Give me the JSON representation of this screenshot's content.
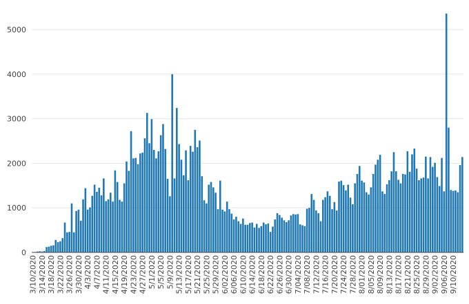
{
  "chart_data": {
    "type": "bar",
    "title": "",
    "xlabel": "",
    "ylabel": "",
    "ylim": [
      0,
      5500
    ],
    "yticks": [
      0,
      1000,
      2000,
      3000,
      4000,
      5000
    ],
    "ytick_labels": [
      "0",
      "1000",
      "2000",
      "3000",
      "4000",
      "5000"
    ],
    "grid": "horizontal",
    "bar_color": "#1f77b4",
    "start_date": "3/10/2020",
    "xtick_labels": [
      "3/10/2020",
      "3/14/2020",
      "3/18/2020",
      "3/22/2020",
      "3/26/2020",
      "3/30/2020",
      "4/3/2020",
      "4/7/2020",
      "4/11/2020",
      "4/15/2020",
      "4/19/2020",
      "4/23/2020",
      "4/27/2020",
      "5/1/2020",
      "5/5/2020",
      "5/9/2020",
      "5/13/2020",
      "5/17/2020",
      "5/21/2020",
      "5/25/2020",
      "5/29/2020",
      "6/02/2020",
      "6/06/2020",
      "6/10/2020",
      "6/14/2020",
      "6/18/2020",
      "6/22/2020",
      "6/26/2020",
      "6/30/2020",
      "7/04/2020",
      "7/08/2020",
      "7/12/2020",
      "7/16/2020",
      "7/20/2020",
      "7/24/2020",
      "7/28/2020",
      "8/01/2020",
      "8/05/2020",
      "8/09/2020",
      "8/13/2020",
      "8/17/2020",
      "8/21/2020",
      "8/25/2020",
      "8/29/2020",
      "9/02/2020",
      "9/06/2020",
      "9/10/2020"
    ],
    "values": [
      5,
      10,
      20,
      25,
      20,
      30,
      120,
      130,
      150,
      160,
      280,
      230,
      250,
      320,
      670,
      450,
      460,
      1100,
      450,
      930,
      960,
      710,
      1190,
      1440,
      960,
      1010,
      1270,
      1520,
      1360,
      1450,
      1280,
      1660,
      1150,
      1190,
      1340,
      1140,
      1840,
      1580,
      1180,
      1140,
      1550,
      2040,
      1830,
      2720,
      2110,
      2120,
      1980,
      2220,
      2240,
      2560,
      3130,
      2450,
      2990,
      2300,
      2110,
      2270,
      2630,
      2880,
      2320,
      1650,
      1260,
      4000,
      1660,
      3240,
      2430,
      2080,
      1730,
      2290,
      1620,
      2390,
      2260,
      2750,
      2360,
      2510,
      1710,
      1170,
      1100,
      1520,
      1580,
      1460,
      1340,
      970,
      1610,
      960,
      920,
      1140,
      970,
      870,
      740,
      800,
      700,
      640,
      760,
      620,
      620,
      660,
      670,
      560,
      640,
      550,
      590,
      670,
      630,
      650,
      460,
      580,
      740,
      880,
      840,
      780,
      720,
      680,
      720,
      830,
      860,
      850,
      860,
      630,
      610,
      590,
      980,
      1000,
      1310,
      1180,
      940,
      880,
      700,
      1180,
      1240,
      1370,
      1270,
      970,
      1130,
      940,
      1590,
      1610,
      1510,
      1390,
      1520,
      1230,
      1080,
      1550,
      1760,
      1940,
      1610,
      1570,
      1350,
      1300,
      1460,
      1760,
      1970,
      2080,
      2190,
      1370,
      1310,
      1530,
      1620,
      1820,
      2250,
      1820,
      1630,
      1550,
      1760,
      1750,
      2270,
      1810,
      2200,
      2330,
      1880,
      1620,
      1660,
      1680,
      2150,
      1660,
      2140,
      1920,
      2010,
      1690,
      1490,
      2120,
      1370,
      5360,
      2800,
      1400,
      1380,
      1390,
      1350,
      1960,
      2140
    ]
  }
}
